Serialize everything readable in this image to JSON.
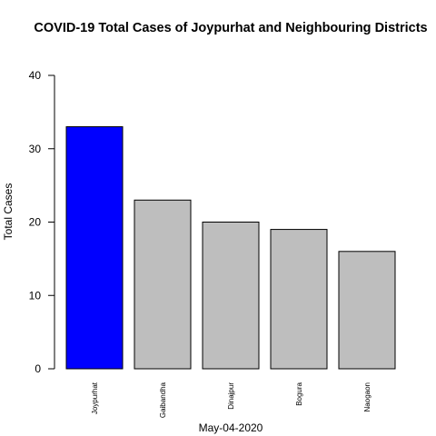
{
  "chart_data": {
    "type": "bar",
    "title": "COVID-19 Total Cases of Joypurhat and Neighbouring Districts",
    "xlabel": "May-04-2020",
    "ylabel": "Total Cases",
    "categories": [
      "Joypurhat",
      "Gaibandha",
      "Dinajpur",
      "Bogura",
      "Naogaon"
    ],
    "values": [
      33,
      23,
      20,
      19,
      16
    ],
    "colors": [
      "#0000ff",
      "#bebebe",
      "#bebebe",
      "#bebebe",
      "#bebebe"
    ],
    "ylim": [
      0,
      40
    ],
    "yticks": [
      0,
      10,
      20,
      30,
      40
    ],
    "grid": false,
    "legend": "none"
  }
}
